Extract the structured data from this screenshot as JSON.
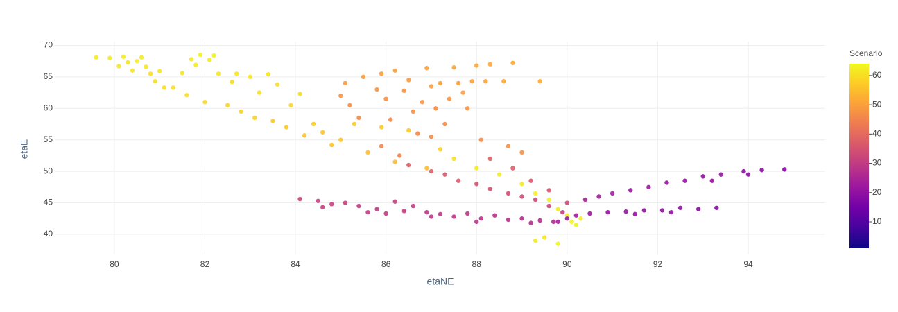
{
  "chart_data": {
    "type": "scatter",
    "x_label": "etaNE",
    "y_label": "etaE",
    "xlim": [
      78.7,
      95.7
    ],
    "ylim": [
      36.8,
      70.6
    ],
    "xticks": [
      80,
      82,
      84,
      86,
      88,
      90,
      92,
      94
    ],
    "yticks": [
      40,
      45,
      50,
      55,
      60,
      65,
      70
    ],
    "grid": true,
    "colorscale": [
      "#0d0887",
      "#46039f",
      "#7201a8",
      "#9c179e",
      "#bd3786",
      "#d8576b",
      "#ed7953",
      "#fb9f3a",
      "#fdca26",
      "#f0f921"
    ],
    "colorbar": {
      "title": "Scenario",
      "range": [
        1,
        64
      ],
      "ticks": [
        10,
        20,
        30,
        40,
        50,
        60
      ]
    },
    "x": [
      79.6,
      79.9,
      80.1,
      80.2,
      80.3,
      80.4,
      80.5,
      80.6,
      80.7,
      80.8,
      80.9,
      81.0,
      81.1,
      81.3,
      81.5,
      81.6,
      81.7,
      81.8,
      81.9,
      82.0,
      82.1,
      82.2,
      82.3,
      82.5,
      82.6,
      82.7,
      82.8,
      83.0,
      83.1,
      83.2,
      83.4,
      83.5,
      83.6,
      83.8,
      83.9,
      84.1,
      84.2,
      84.4,
      84.6,
      84.8,
      85.0,
      85.3,
      85.6,
      85.9,
      86.2,
      86.5,
      86.9,
      87.2,
      87.5,
      88.0,
      88.5,
      89.0,
      89.3,
      89.6,
      89.8,
      90.0,
      90.1,
      90.2,
      90.3,
      89.3,
      89.8,
      89.5,
      85.0,
      85.1,
      85.2,
      85.4,
      85.5,
      85.8,
      85.9,
      86.0,
      86.1,
      86.2,
      86.4,
      86.5,
      86.6,
      86.7,
      86.8,
      86.9,
      87.0,
      87.1,
      87.2,
      87.3,
      87.4,
      87.5,
      87.6,
      87.7,
      87.8,
      87.9,
      88.0,
      88.1,
      88.2,
      88.3,
      88.6,
      88.8,
      88.7,
      89.0,
      89.4,
      86.3,
      87.0,
      85.9,
      86.5,
      87.0,
      87.3,
      87.6,
      88.0,
      88.3,
      88.7,
      89.0,
      89.3,
      89.6,
      89.9,
      88.3,
      88.8,
      89.2,
      89.6,
      90.0,
      84.1,
      84.5,
      84.8,
      85.1,
      85.4,
      85.8,
      86.2,
      86.4,
      86.6,
      86.9,
      87.2,
      87.5,
      87.8,
      88.1,
      88.4,
      88.7,
      89.0,
      89.4,
      89.7,
      84.6,
      85.6,
      86.0,
      87.0,
      88.0,
      89.2,
      90.4,
      90.7,
      91.0,
      91.4,
      91.8,
      92.2,
      92.6,
      93.0,
      93.4,
      93.9,
      94.3,
      94.8,
      94.0,
      93.2,
      90.5,
      90.9,
      91.3,
      91.7,
      92.1,
      92.5,
      92.9,
      93.3,
      91.5,
      92.3,
      90.0,
      90.2,
      89.8
    ],
    "y": [
      68.1,
      68.0,
      66.7,
      68.2,
      67.3,
      66.0,
      67.5,
      68.1,
      66.6,
      65.5,
      64.3,
      65.9,
      63.3,
      63.3,
      65.6,
      62.1,
      67.8,
      66.9,
      68.5,
      61.0,
      67.7,
      68.4,
      65.5,
      60.5,
      64.2,
      65.5,
      59.5,
      65.0,
      58.5,
      62.5,
      65.4,
      58.0,
      63.8,
      57.0,
      60.5,
      62.3,
      55.7,
      57.5,
      56.2,
      54.2,
      55.0,
      57.5,
      53.0,
      57.0,
      51.5,
      56.5,
      50.5,
      53.5,
      52.0,
      50.5,
      49.5,
      48.0,
      46.5,
      45.5,
      44.0,
      43.0,
      42.0,
      41.5,
      42.5,
      39.0,
      38.5,
      39.5,
      62.0,
      64.0,
      60.5,
      58.5,
      65.0,
      63.0,
      65.5,
      61.5,
      58.2,
      66.0,
      62.8,
      64.5,
      59.5,
      56.0,
      61.0,
      66.4,
      63.5,
      60.0,
      64.0,
      57.5,
      61.5,
      66.5,
      64.0,
      62.5,
      60.0,
      64.3,
      66.8,
      55.0,
      64.3,
      67.0,
      64.3,
      67.2,
      54.0,
      53.0,
      64.3,
      52.5,
      55.5,
      54.0,
      51.0,
      50.0,
      49.5,
      48.5,
      48.0,
      47.2,
      46.5,
      46.0,
      45.5,
      44.5,
      43.5,
      52.0,
      50.5,
      48.5,
      47.0,
      45.0,
      45.6,
      45.3,
      44.8,
      45.0,
      44.5,
      44.0,
      45.2,
      43.7,
      44.5,
      43.5,
      43.2,
      42.8,
      43.3,
      42.5,
      43.0,
      42.3,
      42.5,
      42.2,
      42.0,
      44.3,
      43.5,
      43.3,
      42.8,
      42.0,
      41.8,
      45.5,
      46.0,
      46.5,
      47.0,
      47.5,
      48.2,
      48.5,
      49.2,
      49.5,
      50.0,
      50.2,
      50.3,
      49.5,
      48.5,
      43.3,
      43.5,
      43.6,
      43.8,
      43.8,
      44.2,
      44.0,
      44.2,
      43.2,
      43.5,
      42.5,
      43.0,
      42.0
    ],
    "color_values": [
      62,
      62,
      61,
      62,
      61,
      61,
      62,
      62,
      61,
      60,
      60,
      61,
      60,
      60,
      61,
      60,
      62,
      62,
      63,
      59,
      62,
      63,
      61,
      59,
      60,
      61,
      58,
      61,
      58,
      60,
      61,
      57,
      60,
      57,
      59,
      60,
      56,
      57,
      56,
      56,
      56,
      57,
      55,
      57,
      54,
      57,
      55,
      58,
      60,
      62,
      62,
      62,
      63,
      63,
      62,
      62,
      63,
      63,
      62,
      62,
      63,
      61,
      48,
      49,
      47,
      46,
      49,
      48,
      50,
      47,
      46,
      50,
      48,
      49,
      47,
      45,
      48,
      50,
      49,
      47,
      50,
      46,
      48,
      51,
      50,
      49,
      48,
      50,
      51,
      46,
      50,
      51,
      51,
      52,
      47,
      47,
      52,
      45,
      46,
      45,
      38,
      37,
      36,
      36,
      35,
      35,
      34,
      33,
      33,
      32,
      31,
      38,
      37,
      36,
      35,
      33,
      32,
      31,
      31,
      31,
      30,
      30,
      31,
      30,
      30,
      29,
      29,
      29,
      29,
      28,
      28,
      28,
      27,
      27,
      26,
      31,
      30,
      30,
      29,
      28,
      27,
      24,
      23,
      23,
      22,
      22,
      21,
      21,
      20,
      20,
      19,
      19,
      18,
      19,
      21,
      22,
      21,
      21,
      20,
      20,
      19,
      19,
      18,
      21,
      20,
      22,
      23,
      24
    ]
  }
}
